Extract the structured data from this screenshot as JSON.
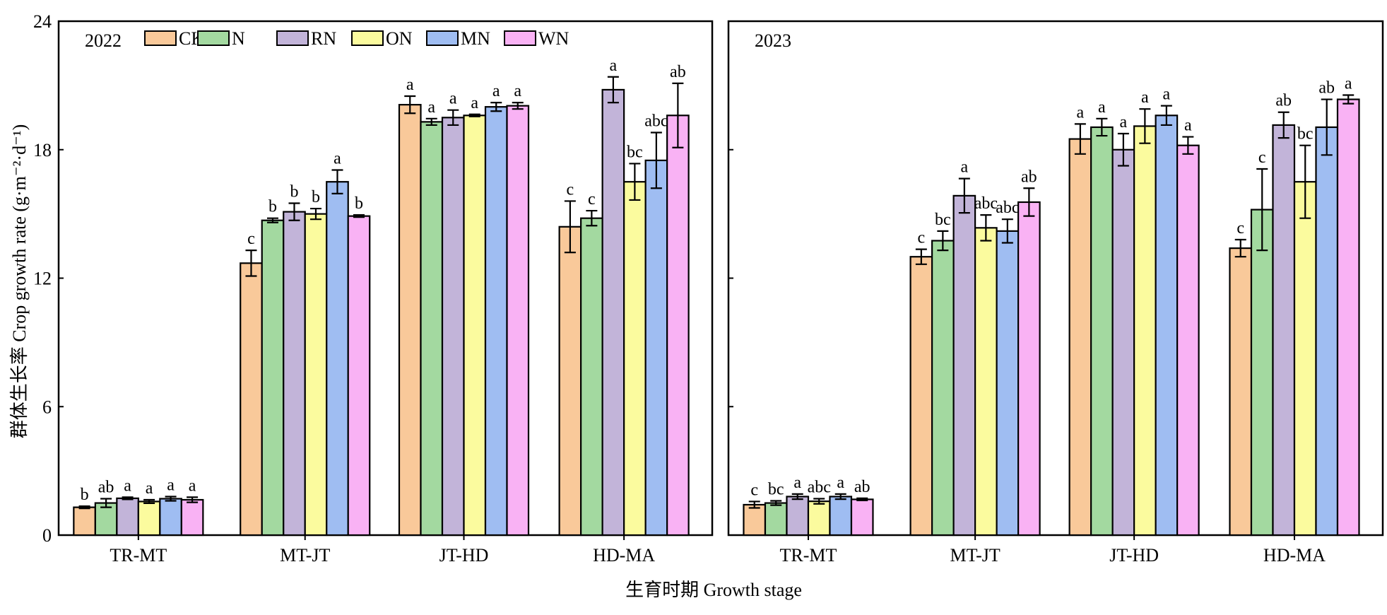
{
  "chart_data": {
    "type": "bar",
    "ylabel": "群体生长率 Crop growth rate (g·m⁻²·d⁻¹)",
    "xlabel": "生育时期 Growth stage",
    "ylim": [
      0,
      24
    ],
    "yticks": [
      "0",
      "6",
      "12",
      "18",
      "24"
    ],
    "categories": [
      "TR-MT",
      "MT-JT",
      "JT-HD",
      "HD-MA"
    ],
    "legend": {
      "placement": "top-left",
      "entries": [
        {
          "name": "CK",
          "color": "#f9c99a"
        },
        {
          "name": "N",
          "color": "#a3d9a0"
        },
        {
          "name": "RN",
          "color": "#c2b4d9"
        },
        {
          "name": "ON",
          "color": "#fbfb9e"
        },
        {
          "name": "MN",
          "color": "#9fbdf2"
        },
        {
          "name": "WN",
          "color": "#f9b2f4"
        }
      ]
    },
    "panels": [
      {
        "year": "2022",
        "groups": [
          {
            "category": "TR-MT",
            "values": [
              1.3,
              1.5,
              1.72,
              1.57,
              1.7,
              1.65
            ],
            "errors": [
              0.05,
              0.2,
              0.05,
              0.08,
              0.1,
              0.12
            ],
            "labels": [
              "b",
              "ab",
              "a",
              "a",
              "a",
              "a"
            ]
          },
          {
            "category": "MT-JT",
            "values": [
              12.7,
              14.7,
              15.1,
              15.0,
              16.5,
              14.9
            ],
            "errors": [
              0.6,
              0.1,
              0.4,
              0.25,
              0.55,
              0.05
            ],
            "labels": [
              "c",
              "b",
              "b",
              "b",
              "a",
              "b"
            ]
          },
          {
            "category": "JT-HD",
            "values": [
              20.1,
              19.3,
              19.5,
              19.6,
              20.0,
              20.05
            ],
            "errors": [
              0.4,
              0.15,
              0.35,
              0.05,
              0.2,
              0.15
            ],
            "labels": [
              "a",
              "a",
              "a",
              "a",
              "a",
              "a"
            ]
          },
          {
            "category": "HD-MA",
            "values": [
              14.4,
              14.8,
              20.8,
              16.5,
              17.5,
              19.6
            ],
            "errors": [
              1.2,
              0.35,
              0.6,
              0.85,
              1.3,
              1.5
            ],
            "labels": [
              "c",
              "c",
              "a",
              "bc",
              "abc",
              "ab"
            ]
          }
        ]
      },
      {
        "year": "2023",
        "groups": [
          {
            "category": "TR-MT",
            "values": [
              1.42,
              1.5,
              1.8,
              1.58,
              1.8,
              1.67
            ],
            "errors": [
              0.15,
              0.1,
              0.12,
              0.12,
              0.12,
              0.05
            ],
            "labels": [
              "c",
              "bc",
              "a",
              "abc",
              "a",
              "ab"
            ]
          },
          {
            "category": "MT-JT",
            "values": [
              13.0,
              13.75,
              15.85,
              14.35,
              14.2,
              15.55
            ],
            "errors": [
              0.35,
              0.45,
              0.8,
              0.6,
              0.55,
              0.65
            ],
            "labels": [
              "c",
              "bc",
              "a",
              "abc",
              "abc",
              "ab"
            ]
          },
          {
            "category": "JT-HD",
            "values": [
              18.5,
              19.05,
              18.0,
              19.1,
              19.6,
              18.2
            ],
            "errors": [
              0.7,
              0.4,
              0.75,
              0.8,
              0.45,
              0.4
            ],
            "labels": [
              "a",
              "a",
              "a",
              "a",
              "a",
              "a"
            ]
          },
          {
            "category": "HD-MA",
            "values": [
              13.4,
              15.2,
              19.15,
              16.5,
              19.05,
              20.35
            ],
            "errors": [
              0.4,
              1.9,
              0.6,
              1.7,
              1.3,
              0.2
            ],
            "labels": [
              "c",
              "c",
              "ab",
              "bc",
              "ab",
              "a"
            ]
          }
        ]
      }
    ]
  }
}
